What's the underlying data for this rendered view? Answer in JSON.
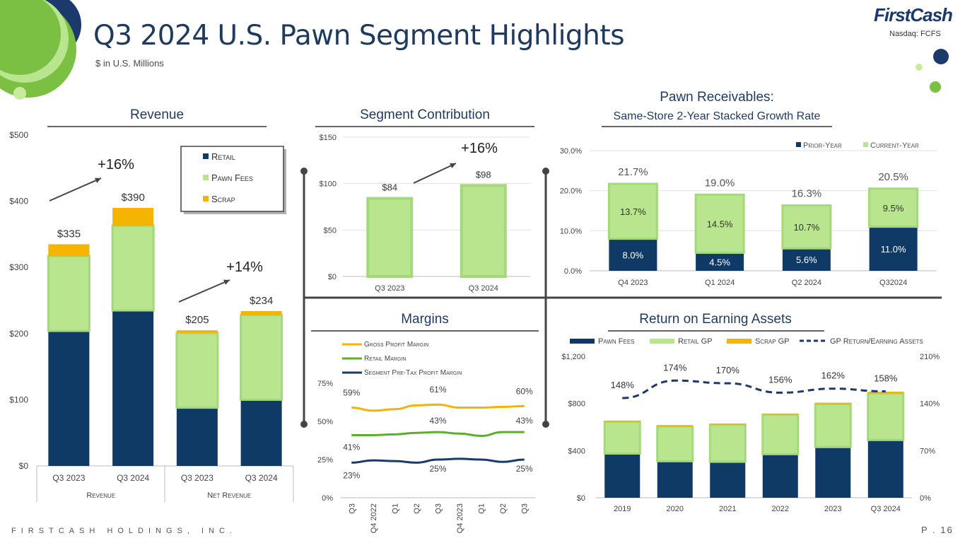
{
  "header": {
    "title": "Q3 2024 U.S. Pawn Segment Highlights",
    "subtitle": "$ in U.S. Millions",
    "logo": "FirstCash",
    "ticker": "Nasdaq: FCFS"
  },
  "footer": {
    "company": "FIRSTCASH HOLDINGS, INC.",
    "page": "P . 16"
  },
  "colors": {
    "navy": "#0f3a66",
    "light_green": "#b9e58f",
    "light_green_border": "#a3d97a",
    "gold": "#f4b400",
    "green_line": "#5ab02e",
    "gold_line": "#f5b301",
    "navy_line": "#1b3a6b",
    "deco_green": "#7bc043",
    "deco_light": "#c7ec9e",
    "deco_navy": "#1b3a6b"
  },
  "chart_data": [
    {
      "id": "revenue",
      "type": "bar",
      "stacked": true,
      "title": "Revenue",
      "categories": [
        "Q3 2023",
        "Q3 2024",
        "Q3 2023",
        "Q3 2024"
      ],
      "groups": [
        {
          "label": "Revenue",
          "span": [
            0,
            1
          ]
        },
        {
          "label": "Net Revenue",
          "span": [
            2,
            3
          ]
        }
      ],
      "series": [
        {
          "name": "Retail",
          "values": [
            204,
            235,
            88,
            100
          ]
        },
        {
          "name": "Pawn Fees",
          "values": [
            113,
            128,
            113,
            128
          ]
        },
        {
          "name": "Scrap",
          "values": [
            18,
            27,
            4,
            6
          ]
        }
      ],
      "totals": [
        "$335",
        "$390",
        "$205",
        "$234"
      ],
      "annotations": [
        "+16%",
        "+14%"
      ],
      "ylim": [
        0,
        500
      ],
      "yticks": [
        0,
        100,
        200,
        300,
        400,
        500
      ],
      "ytick_labels": [
        "$0",
        "$100",
        "$200",
        "$300",
        "$400",
        "$500"
      ],
      "legend": [
        "Retail",
        "Pawn Fees",
        "Scrap"
      ]
    },
    {
      "id": "segment_contribution",
      "type": "bar",
      "title": "Segment Contribution",
      "categories": [
        "Q3 2023",
        "Q3 2024"
      ],
      "values": [
        84,
        98
      ],
      "value_labels": [
        "$84",
        "$98"
      ],
      "annotations": [
        "+16%"
      ],
      "ylim": [
        0,
        150
      ],
      "yticks": [
        0,
        50,
        100,
        150
      ],
      "ytick_labels": [
        "$0",
        "$50",
        "$100",
        "$150"
      ]
    },
    {
      "id": "pawn_receivables",
      "type": "bar",
      "stacked": true,
      "title_line1": "Pawn Receivables:",
      "title_line2": "Same-Store 2-Year Stacked Growth Rate",
      "categories": [
        "Q4 2023",
        "Q1 2024",
        "Q2 2024",
        "Q32024"
      ],
      "series": [
        {
          "name": "Prior-Year",
          "values": [
            8.0,
            4.5,
            5.6,
            11.0
          ],
          "labels": [
            "8.0%",
            "4.5%",
            "5.6%",
            "11.0%"
          ]
        },
        {
          "name": "Current-Year",
          "values": [
            13.7,
            14.5,
            10.7,
            9.5
          ],
          "labels": [
            "13.7%",
            "14.5%",
            "10.7%",
            "9.5%"
          ]
        }
      ],
      "totals": [
        "21.7%",
        "19.0%",
        "16.3%",
        "20.5%"
      ],
      "ylim": [
        0,
        30
      ],
      "yticks": [
        0,
        10,
        20,
        30
      ],
      "ytick_labels": [
        "0.0%",
        "10.0%",
        "20.0%",
        "30.0%"
      ],
      "legend": [
        "Prior-Year",
        "Current-Year"
      ]
    },
    {
      "id": "margins",
      "type": "line",
      "title": "Margins",
      "x": [
        "Q3",
        "Q4 2022",
        "Q1",
        "Q2",
        "Q3",
        "Q4 2023",
        "Q1",
        "Q2",
        "Q3"
      ],
      "series": [
        {
          "name": "Gross Profit Margin",
          "values": [
            59,
            57,
            58,
            60.5,
            61,
            59,
            59,
            59.5,
            60
          ]
        },
        {
          "name": "Retail Margin",
          "values": [
            41,
            41,
            41.5,
            42.5,
            43,
            42,
            40.5,
            43,
            43
          ]
        },
        {
          "name": "Segment Pre-Tax Profit Margin",
          "values": [
            23,
            24.5,
            24,
            23,
            25,
            25.5,
            25,
            23.5,
            25
          ]
        }
      ],
      "point_labels": [
        {
          "series": 0,
          "index": 0,
          "text": "59%"
        },
        {
          "series": 0,
          "index": 4,
          "text": "61%"
        },
        {
          "series": 0,
          "index": 8,
          "text": "60%"
        },
        {
          "series": 1,
          "index": 0,
          "text": "41%"
        },
        {
          "series": 1,
          "index": 4,
          "text": "43%"
        },
        {
          "series": 1,
          "index": 8,
          "text": "43%"
        },
        {
          "series": 2,
          "index": 0,
          "text": "23%"
        },
        {
          "series": 2,
          "index": 4,
          "text": "25%"
        },
        {
          "series": 2,
          "index": 8,
          "text": "25%"
        }
      ],
      "ylim": [
        0,
        75
      ],
      "yticks": [
        0,
        25,
        50,
        75
      ],
      "ytick_labels": [
        "0%",
        "25%",
        "50%",
        "75%"
      ]
    },
    {
      "id": "roea",
      "type": "bar",
      "stacked": true,
      "title": "Return on Earning Assets",
      "categories": [
        "2019",
        "2020",
        "2021",
        "2022",
        "2023",
        "Q3 2024"
      ],
      "series": [
        {
          "name": "Pawn Fees",
          "values": [
            375,
            310,
            305,
            370,
            430,
            490
          ]
        },
        {
          "name": "Retail GP",
          "values": [
            270,
            295,
            315,
            335,
            365,
            395
          ]
        },
        {
          "name": "Scrap GP",
          "values": [
            10,
            12,
            10,
            10,
            12,
            15
          ]
        }
      ],
      "line": {
        "name": "GP Return/Earning Assets",
        "values": [
          148,
          174,
          170,
          156,
          162,
          158
        ],
        "labels": [
          "148%",
          "174%",
          "170%",
          "156%",
          "162%",
          "158%"
        ]
      },
      "ylim": [
        0,
        1200
      ],
      "yticks": [
        0,
        400,
        800,
        1200
      ],
      "ytick_labels": [
        "$0",
        "$400",
        "$800",
        "$1,200"
      ],
      "y2lim": [
        0,
        210
      ],
      "y2ticks": [
        0,
        70,
        140,
        210
      ],
      "y2tick_labels": [
        "0%",
        "70%",
        "140%",
        "210%"
      ],
      "legend": [
        "Pawn Fees",
        "Retail GP",
        "Scrap GP",
        "GP Return/Earning Assets"
      ]
    }
  ]
}
